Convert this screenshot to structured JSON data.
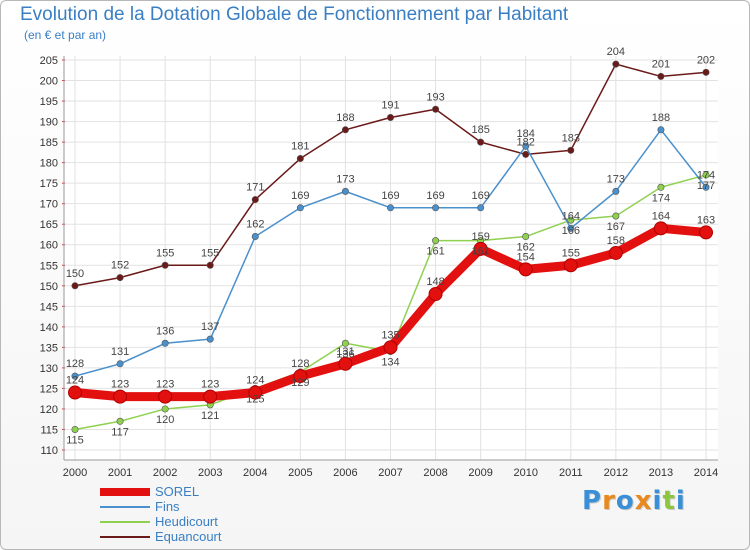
{
  "title": "Evolution de la Dotation Globale de Fonctionnement par Habitant",
  "subtitle": "(en € et par an)",
  "logo": {
    "text": "Proxiti",
    "letters": [
      "P",
      "r",
      "o",
      "x",
      "i",
      "t",
      "i"
    ],
    "colors": [
      "#3a8fd6",
      "#e8891e",
      "#3a8fd6",
      "#e8891e",
      "#3a8fd6",
      "#8cc63f",
      "#3a8fd6"
    ]
  },
  "chart_data": {
    "type": "line",
    "title": "Evolution de la Dotation Globale de Fonctionnement par Habitant",
    "subtitle": "(en € et par an)",
    "xlabel": "",
    "ylabel": "",
    "ylim": [
      110,
      205
    ],
    "yticks": [
      110,
      115,
      120,
      125,
      130,
      135,
      140,
      145,
      150,
      155,
      160,
      165,
      170,
      175,
      180,
      185,
      190,
      195,
      200,
      205
    ],
    "grid": true,
    "legend_position": "bottom-left",
    "x": [
      2000,
      2001,
      2002,
      2003,
      2004,
      2005,
      2006,
      2007,
      2008,
      2009,
      2010,
      2011,
      2012,
      2013,
      2014
    ],
    "series": [
      {
        "name": "SOREL",
        "color": "#e31010",
        "values": [
          124,
          123,
          123,
          123,
          124,
          128,
          131,
          135,
          148,
          159,
          154,
          155,
          158,
          164,
          163
        ]
      },
      {
        "name": "Fins",
        "color": "#4a90cc",
        "values": [
          128,
          131,
          136,
          137,
          162,
          169,
          173,
          169,
          169,
          169,
          184,
          164,
          173,
          188,
          174
        ]
      },
      {
        "name": "Heudicourt",
        "color": "#8fd14f",
        "values": [
          115,
          117,
          120,
          121,
          125,
          129,
          136,
          134,
          161,
          161,
          162,
          166,
          167,
          174,
          177
        ]
      },
      {
        "name": "Equancourt",
        "color": "#6b1a1a",
        "values": [
          150,
          152,
          155,
          155,
          171,
          181,
          188,
          191,
          193,
          185,
          182,
          183,
          204,
          201,
          202
        ]
      }
    ]
  }
}
